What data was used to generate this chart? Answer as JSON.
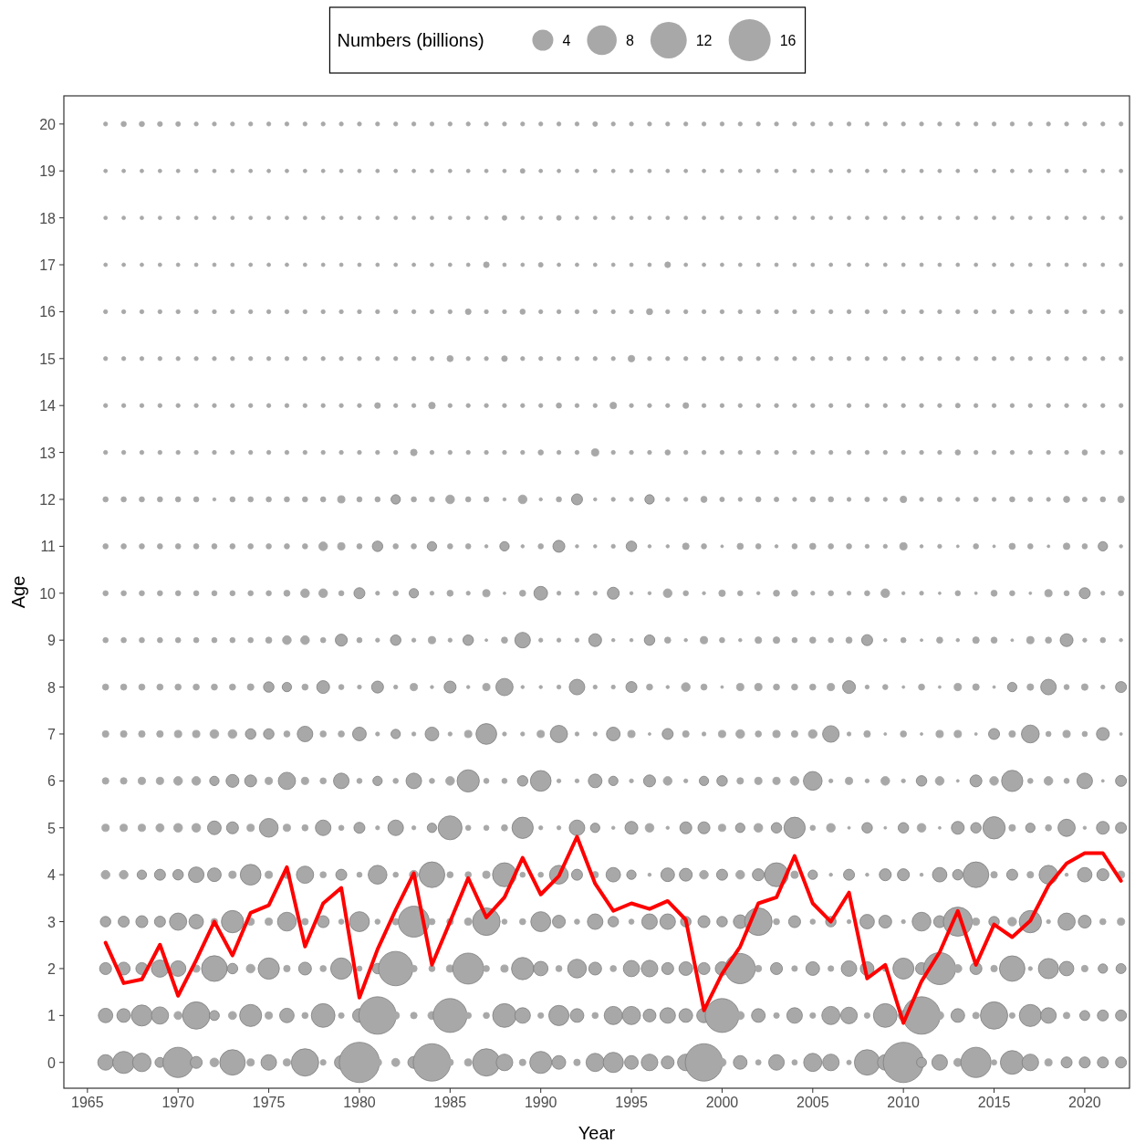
{
  "chart_data": {
    "type": "bubble",
    "xlabel": "Year",
    "ylabel": "Age",
    "legend_title": "Numbers (billions)",
    "size_legend": [
      4,
      8,
      12,
      16
    ],
    "x": [
      1966,
      1967,
      1968,
      1969,
      1970,
      1971,
      1972,
      1973,
      1974,
      1975,
      1976,
      1977,
      1978,
      1979,
      1980,
      1981,
      1982,
      1983,
      1984,
      1985,
      1986,
      1987,
      1988,
      1989,
      1990,
      1991,
      1992,
      1993,
      1994,
      1995,
      1996,
      1997,
      1998,
      1999,
      2000,
      2001,
      2002,
      2003,
      2004,
      2005,
      2006,
      2007,
      2008,
      2009,
      2010,
      2011,
      2012,
      2013,
      2014,
      2015,
      2016,
      2017,
      2018,
      2019,
      2020,
      2021,
      2022
    ],
    "xlim": [
      1963.7,
      2022.47
    ],
    "xticks": [
      1965,
      1970,
      1975,
      1980,
      1985,
      1990,
      1995,
      2000,
      2005,
      2010,
      2015,
      2020
    ],
    "ylim": [
      -0.55,
      20.6
    ],
    "yticks": [
      0,
      1,
      2,
      3,
      4,
      5,
      6,
      7,
      8,
      9,
      10,
      11,
      12,
      13,
      14,
      15,
      16,
      17,
      18,
      19,
      20
    ],
    "series": [
      {
        "color": "#a8a8a8",
        "values": [
          0,
          0,
          0,
          0,
          0,
          0,
          0,
          0,
          0,
          0,
          0,
          0,
          0,
          0,
          0,
          0,
          0,
          0,
          0,
          0,
          0,
          0,
          0,
          0,
          0,
          0,
          0,
          0,
          0,
          0,
          0,
          0,
          0,
          0,
          0,
          0,
          0,
          0,
          0,
          0,
          0,
          0,
          0,
          0,
          0,
          0,
          0,
          0,
          0,
          0,
          0,
          0,
          0,
          0,
          0,
          0,
          0
        ],
        "sizes": [
          2.2,
          4.4,
          3.1,
          0.9,
          8.3,
          1.3,
          0.7,
          5.9,
          0.5,
          2.2,
          0.5,
          6.8,
          0.3,
          1.7,
          14.7,
          0.6,
          0.6,
          1.3,
          12.7,
          0.4,
          0.5,
          6.8,
          2.5,
          0.4,
          4.4,
          1.7,
          0.4,
          3.0,
          3.7,
          1.7,
          2.5,
          1.5,
          2.5,
          12.7,
          0.6,
          1.7,
          0.27,
          2.2,
          0.27,
          3.0,
          2.5,
          0.2,
          5.9,
          2.2,
          14.7,
          0.9,
          2.2,
          0.6,
          8.3,
          0.27,
          5.1,
          2.5,
          0.5,
          1.1,
          1.1,
          1.1,
          1.1
        ]
      },
      {
        "color": "#a8a8a8",
        "values": [
          1,
          1,
          1,
          1,
          1,
          1,
          1,
          1,
          1,
          1,
          1,
          1,
          1,
          1,
          1,
          1,
          1,
          1,
          1,
          1,
          1,
          1,
          1,
          1,
          1,
          1,
          1,
          1,
          1,
          1,
          1,
          1,
          1,
          1,
          1,
          1,
          1,
          1,
          1,
          1,
          1,
          1,
          1,
          1,
          1,
          1,
          1,
          1,
          1,
          1,
          1,
          1,
          1,
          1,
          1,
          1,
          1
        ],
        "sizes": [
          1.9,
          1.7,
          4.0,
          2.7,
          0.6,
          6.8,
          0.9,
          0.6,
          4.4,
          0.5,
          1.9,
          0.35,
          5.1,
          0.3,
          1.7,
          12.7,
          0.5,
          0.4,
          0.6,
          10.4,
          0.35,
          0.35,
          5.1,
          2.2,
          0.3,
          3.7,
          1.7,
          0.35,
          3.0,
          3.0,
          1.5,
          2.2,
          1.7,
          1.9,
          10.4,
          0.6,
          1.7,
          0.3,
          2.2,
          0.3,
          3.0,
          2.5,
          0.3,
          5.1,
          0.9,
          12.7,
          0.6,
          1.7,
          0.4,
          6.8,
          0.3,
          4.4,
          2.2,
          0.4,
          0.9,
          1.1,
          1.1
        ]
      },
      {
        "color": "#a8a8a8",
        "values": [
          2,
          2,
          2,
          2,
          2,
          2,
          2,
          2,
          2,
          2,
          2,
          2,
          2,
          2,
          2,
          2,
          2,
          2,
          2,
          2,
          2,
          2,
          2,
          2,
          2,
          2,
          2,
          2,
          2,
          2,
          2,
          2,
          2,
          2,
          2,
          2,
          2,
          2,
          2,
          2,
          2,
          2,
          2,
          2,
          2,
          2,
          2,
          2,
          2,
          2,
          2,
          2,
          2,
          2,
          2,
          2,
          2
        ],
        "sizes": [
          1.3,
          1.5,
          1.3,
          2.7,
          2.2,
          0.5,
          6.0,
          1.0,
          0.7,
          4.1,
          0.4,
          1.5,
          0.35,
          4.1,
          0.25,
          1.0,
          10.7,
          0.4,
          0.35,
          0.5,
          8.7,
          0.35,
          0.5,
          4.5,
          1.9,
          0.35,
          3.2,
          1.5,
          0.35,
          2.4,
          2.5,
          1.3,
          1.7,
          1.3,
          1.7,
          8.3,
          0.4,
          1.3,
          0.3,
          1.7,
          0.3,
          2.2,
          1.7,
          0.3,
          4.0,
          1.3,
          9.3,
          0.6,
          1.3,
          0.4,
          5.9,
          0.15,
          3.7,
          1.9,
          0.4,
          0.8,
          0.9
        ]
      },
      {
        "color": "#a8a8a8",
        "values": [
          3,
          3,
          3,
          3,
          3,
          3,
          3,
          3,
          3,
          3,
          3,
          3,
          3,
          3,
          3,
          3,
          3,
          3,
          3,
          3,
          3,
          3,
          3,
          3,
          3,
          3,
          3,
          3,
          3,
          3,
          3,
          3,
          3,
          3,
          3,
          3,
          3,
          3,
          3,
          3,
          3,
          3,
          3,
          3,
          3,
          3,
          3,
          3,
          3,
          3,
          3,
          3,
          3,
          3,
          3,
          3,
          3
        ],
        "sizes": [
          1.0,
          1.1,
          1.3,
          1.1,
          2.7,
          1.9,
          0.4,
          4.5,
          0.5,
          0.5,
          3.2,
          0.4,
          1.3,
          0.25,
          3.6,
          0.25,
          0.4,
          8.7,
          0.35,
          0.4,
          0.5,
          6.9,
          0.25,
          0.35,
          3.6,
          1.5,
          0.25,
          2.2,
          1.0,
          0.25,
          2.2,
          2.2,
          1.0,
          1.3,
          1.0,
          1.7,
          6.9,
          0.35,
          1.3,
          0.25,
          1.0,
          0.15,
          1.9,
          1.5,
          0.15,
          3.2,
          1.3,
          7.7,
          0.5,
          1.0,
          0.7,
          4.5,
          0.15,
          2.7,
          1.5,
          0.35,
          0.5
        ]
      },
      {
        "color": "#a8a8a8",
        "values": [
          4,
          4,
          4,
          4,
          4,
          4,
          4,
          4,
          4,
          4,
          4,
          4,
          4,
          4,
          4,
          4,
          4,
          4,
          4,
          4,
          4,
          4,
          4,
          4,
          4,
          4,
          4,
          4,
          4,
          4,
          4,
          4,
          4,
          4,
          4,
          4,
          4,
          4,
          4,
          4,
          4,
          4,
          4,
          4,
          4,
          4,
          4,
          4,
          4,
          4,
          4,
          4,
          4,
          4,
          4,
          4,
          4
        ],
        "sizes": [
          0.7,
          0.7,
          0.8,
          1.1,
          1.0,
          2.2,
          1.7,
          0.5,
          3.9,
          0.5,
          0.5,
          2.7,
          0.35,
          1.1,
          0.25,
          3.2,
          0.25,
          0.7,
          6.0,
          0.35,
          0.35,
          0.5,
          5.2,
          0.25,
          0.25,
          3.2,
          1.1,
          0.4,
          1.9,
          0.8,
          0.1,
          1.7,
          1.5,
          0.7,
          1.1,
          0.7,
          1.3,
          5.2,
          0.5,
          0.8,
          0.1,
          1.1,
          0.1,
          1.3,
          1.3,
          0.1,
          1.9,
          1.0,
          6.0,
          0.4,
          1.1,
          0.4,
          3.2,
          0.1,
          1.9,
          1.3,
          0.5
        ]
      },
      {
        "color": "#a8a8a8",
        "values": [
          5,
          5,
          5,
          5,
          5,
          5,
          5,
          5,
          5,
          5,
          5,
          5,
          5,
          5,
          5,
          5,
          5,
          5,
          5,
          5,
          5,
          5,
          5,
          5,
          5,
          5,
          5,
          5,
          5,
          5,
          5,
          5,
          5,
          5,
          5,
          5,
          5,
          5,
          5,
          5,
          5,
          5,
          5,
          5,
          5,
          5,
          5,
          5,
          5,
          5,
          5,
          5,
          5,
          5,
          5,
          5,
          5
        ],
        "sizes": [
          0.5,
          0.5,
          0.5,
          0.6,
          0.7,
          0.7,
          1.7,
          1.3,
          0.5,
          3.2,
          0.5,
          0.35,
          2.2,
          0.25,
          1.1,
          0.15,
          2.2,
          0.15,
          0.8,
          5.2,
          0.25,
          0.25,
          0.35,
          4.1,
          0.15,
          0.15,
          2.2,
          0.8,
          0.1,
          1.5,
          0.7,
          0.1,
          1.3,
          1.3,
          0.5,
          0.8,
          0.7,
          1.0,
          4.1,
          0.25,
          0.7,
          0.07,
          1.0,
          0.07,
          1.0,
          0.7,
          0.07,
          1.5,
          1.0,
          4.5,
          0.4,
          0.8,
          0.35,
          2.7,
          0.1,
          1.5,
          1.1
        ]
      },
      {
        "color": "#a8a8a8",
        "values": [
          6,
          6,
          6,
          6,
          6,
          6,
          6,
          6,
          6,
          6,
          6,
          6,
          6,
          6,
          6,
          6,
          6,
          6,
          6,
          6,
          6,
          6,
          6,
          6,
          6,
          6,
          6,
          6,
          6,
          6,
          6,
          6,
          6,
          6,
          6,
          6,
          6,
          6,
          6,
          6,
          6,
          6,
          6,
          6,
          6,
          6,
          6,
          6,
          6,
          6,
          6,
          6,
          6,
          6,
          6,
          6,
          6
        ],
        "sizes": [
          0.4,
          0.4,
          0.5,
          0.5,
          0.7,
          0.7,
          0.8,
          1.5,
          1.3,
          0.5,
          2.7,
          0.5,
          0.35,
          2.2,
          0.25,
          0.8,
          0.25,
          2.2,
          0.25,
          0.7,
          4.5,
          0.25,
          0.25,
          1.0,
          3.9,
          0.15,
          0.15,
          1.7,
          0.8,
          0.15,
          1.3,
          0.7,
          0.15,
          0.8,
          1.0,
          0.4,
          0.5,
          0.5,
          0.7,
          3.2,
          0.15,
          0.5,
          0.15,
          0.7,
          0.15,
          1.0,
          0.7,
          0.07,
          1.3,
          0.7,
          4.1,
          0.25,
          0.7,
          0.25,
          2.2,
          0.07,
          1.1
        ]
      },
      {
        "color": "#a8a8a8",
        "values": [
          7,
          7,
          7,
          7,
          7,
          7,
          7,
          7,
          7,
          7,
          7,
          7,
          7,
          7,
          7,
          7,
          7,
          7,
          7,
          7,
          7,
          7,
          7,
          7,
          7,
          7,
          7,
          7,
          7,
          7,
          7,
          7,
          7,
          7,
          7,
          7,
          7,
          7,
          7,
          7,
          7,
          7,
          7,
          7,
          7,
          7,
          7,
          7,
          7,
          7,
          7,
          7,
          7,
          7,
          7,
          7,
          7
        ],
        "sizes": [
          0.4,
          0.4,
          0.4,
          0.4,
          0.5,
          0.5,
          0.7,
          0.7,
          1.0,
          1.0,
          0.35,
          2.2,
          0.35,
          0.35,
          1.7,
          0.15,
          0.8,
          0.15,
          1.7,
          0.15,
          0.5,
          3.9,
          0.15,
          0.15,
          0.5,
          2.7,
          0.15,
          0.15,
          1.7,
          0.5,
          0.07,
          1.1,
          0.4,
          0.15,
          0.5,
          0.7,
          0.35,
          0.5,
          0.4,
          0.7,
          2.5,
          0.15,
          0.4,
          0.07,
          0.35,
          0.07,
          0.5,
          0.5,
          0.07,
          1.1,
          0.4,
          2.9,
          0.25,
          0.5,
          0.25,
          1.5,
          0.07
        ]
      },
      {
        "color": "#a8a8a8",
        "values": [
          8,
          8,
          8,
          8,
          8,
          8,
          8,
          8,
          8,
          8,
          8,
          8,
          8,
          8,
          8,
          8,
          8,
          8,
          8,
          8,
          8,
          8,
          8,
          8,
          8,
          8,
          8,
          8,
          8,
          8,
          8,
          8,
          8,
          8,
          8,
          8,
          8,
          8,
          8,
          8,
          8,
          8,
          8,
          8,
          8,
          8,
          8,
          8,
          8,
          8,
          8,
          8,
          8,
          8,
          8,
          8,
          8
        ],
        "sizes": [
          0.35,
          0.35,
          0.35,
          0.35,
          0.35,
          0.35,
          0.35,
          0.35,
          0.4,
          1.0,
          0.8,
          0.35,
          1.5,
          0.25,
          0.15,
          1.3,
          0.15,
          0.5,
          0.1,
          1.3,
          0.1,
          0.5,
          2.7,
          0.1,
          0.1,
          0.15,
          2.2,
          0.15,
          0.15,
          1.1,
          0.35,
          0.1,
          0.7,
          0.35,
          0.07,
          0.5,
          0.5,
          0.35,
          0.35,
          0.35,
          0.5,
          1.5,
          0.15,
          0.25,
          0.07,
          0.35,
          0.07,
          0.5,
          0.4,
          0.07,
          0.8,
          0.4,
          2.2,
          0.25,
          0.4,
          0.15,
          1.1
        ]
      },
      {
        "color": "#a8a8a8",
        "values": [
          9,
          9,
          9,
          9,
          9,
          9,
          9,
          9,
          9,
          9,
          9,
          9,
          9,
          9,
          9,
          9,
          9,
          9,
          9,
          9,
          9,
          9,
          9,
          9,
          9,
          9,
          9,
          9,
          9,
          9,
          9,
          9,
          9,
          9,
          9,
          9,
          9,
          9,
          9,
          9,
          9,
          9,
          9,
          9,
          9,
          9,
          9,
          9,
          9,
          9,
          9,
          9,
          9,
          9,
          9,
          9,
          9
        ],
        "sizes": [
          0.25,
          0.25,
          0.25,
          0.25,
          0.25,
          0.25,
          0.25,
          0.25,
          0.25,
          0.35,
          0.7,
          0.7,
          0.25,
          1.3,
          0.25,
          0.15,
          1.0,
          0.15,
          0.5,
          0.15,
          1.0,
          0.07,
          0.35,
          2.2,
          0.15,
          0.15,
          0.15,
          1.5,
          0.1,
          0.1,
          1.0,
          0.35,
          0.1,
          0.5,
          0.25,
          0.1,
          0.4,
          0.4,
          0.25,
          0.35,
          0.25,
          0.35,
          1.1,
          0.1,
          0.25,
          0.07,
          0.35,
          0.1,
          0.4,
          0.35,
          0.07,
          0.5,
          0.35,
          1.5,
          0.15,
          0.25,
          0.1
        ]
      },
      {
        "color": "#a8a8a8",
        "values": [
          10,
          10,
          10,
          10,
          10,
          10,
          10,
          10,
          10,
          10,
          10,
          10,
          10,
          10,
          10,
          10,
          10,
          10,
          10,
          10,
          10,
          10,
          10,
          10,
          10,
          10,
          10,
          10,
          10,
          10,
          10,
          10,
          10,
          10,
          10,
          10,
          10,
          10,
          10,
          10,
          10,
          10,
          10,
          10,
          10,
          10,
          10,
          10,
          10,
          10,
          10,
          10,
          10,
          10,
          10,
          10,
          10
        ],
        "sizes": [
          0.25,
          0.25,
          0.25,
          0.25,
          0.25,
          0.25,
          0.25,
          0.25,
          0.25,
          0.25,
          0.35,
          0.7,
          0.7,
          0.25,
          1.1,
          0.15,
          0.25,
          0.8,
          0.15,
          0.35,
          0.15,
          0.5,
          0.07,
          0.35,
          1.7,
          0.15,
          0.15,
          0.15,
          1.3,
          0.1,
          0.1,
          0.7,
          0.25,
          0.1,
          0.4,
          0.25,
          0.1,
          0.35,
          0.35,
          0.15,
          0.25,
          0.15,
          0.25,
          0.7,
          0.1,
          0.15,
          0.07,
          0.25,
          0.07,
          0.35,
          0.25,
          0.07,
          0.5,
          0.25,
          1.1,
          0.15,
          0.25
        ]
      },
      {
        "color": "#a8a8a8",
        "values": [
          11,
          11,
          11,
          11,
          11,
          11,
          11,
          11,
          11,
          11,
          11,
          11,
          11,
          11,
          11,
          11,
          11,
          11,
          11,
          11,
          11,
          11,
          11,
          11,
          11,
          11,
          11,
          11,
          11,
          11,
          11,
          11,
          11,
          11,
          11,
          11,
          11,
          11,
          11,
          11,
          11,
          11,
          11,
          11,
          11,
          11,
          11,
          11,
          11,
          11,
          11,
          11,
          11,
          11,
          11,
          11,
          11
        ],
        "sizes": [
          0.25,
          0.25,
          0.25,
          0.25,
          0.25,
          0.25,
          0.25,
          0.25,
          0.25,
          0.25,
          0.25,
          0.25,
          0.7,
          0.5,
          0.25,
          1.0,
          0.25,
          0.25,
          0.8,
          0.25,
          0.25,
          0.1,
          0.8,
          0.1,
          0.25,
          1.3,
          0.1,
          0.1,
          0.15,
          1.0,
          0.1,
          0.1,
          0.4,
          0.25,
          0.07,
          0.35,
          0.25,
          0.1,
          0.25,
          0.35,
          0.25,
          0.25,
          0.15,
          0.15,
          0.5,
          0.1,
          0.15,
          0.07,
          0.25,
          0.07,
          0.35,
          0.25,
          0.07,
          0.4,
          0.25,
          0.8,
          0.1
        ]
      },
      {
        "color": "#a8a8a8",
        "values": [
          12,
          12,
          12,
          12,
          12,
          12,
          12,
          12,
          12,
          12,
          12,
          12,
          12,
          12,
          12,
          12,
          12,
          12,
          12,
          12,
          12,
          12,
          12,
          12,
          12,
          12,
          12,
          12,
          12,
          12,
          12,
          12,
          12,
          12,
          12,
          12,
          12,
          12,
          12,
          12,
          12,
          12,
          12,
          12,
          12,
          12,
          12,
          12,
          12,
          12,
          12,
          12,
          12,
          12,
          12,
          12,
          12
        ],
        "sizes": [
          0.25,
          0.25,
          0.25,
          0.25,
          0.25,
          0.25,
          0.1,
          0.25,
          0.25,
          0.25,
          0.25,
          0.25,
          0.25,
          0.5,
          0.25,
          0.25,
          0.8,
          0.25,
          0.25,
          0.7,
          0.25,
          0.25,
          0.1,
          0.7,
          0.1,
          0.25,
          1.1,
          0.1,
          0.15,
          0.15,
          0.8,
          0.15,
          0.15,
          0.35,
          0.2,
          0.15,
          0.25,
          0.2,
          0.15,
          0.25,
          0.25,
          0.15,
          0.2,
          0.15,
          0.4,
          0.15,
          0.2,
          0.15,
          0.2,
          0.15,
          0.25,
          0.2,
          0.15,
          0.35,
          0.2,
          0.25,
          0.4
        ]
      },
      {
        "color": "#a8a8a8",
        "values": [
          13,
          13,
          13,
          13,
          13,
          13,
          13,
          13,
          13,
          13,
          13,
          13,
          13,
          13,
          13,
          13,
          13,
          13,
          13,
          13,
          13,
          13,
          13,
          13,
          13,
          13,
          13,
          13,
          13,
          13,
          13,
          13,
          13,
          13,
          13,
          13,
          13,
          13,
          13,
          13,
          13,
          13,
          13,
          13,
          13,
          13,
          13,
          13,
          13,
          13,
          13,
          13,
          13,
          13,
          13,
          13,
          13
        ],
        "sizes": [
          0.15,
          0.15,
          0.15,
          0.15,
          0.15,
          0.15,
          0.15,
          0.15,
          0.15,
          0.15,
          0.15,
          0.15,
          0.15,
          0.15,
          0.15,
          0.15,
          0.15,
          0.4,
          0.15,
          0.15,
          0.15,
          0.15,
          0.15,
          0.15,
          0.25,
          0.15,
          0.15,
          0.5,
          0.15,
          0.15,
          0.15,
          0.25,
          0.15,
          0.15,
          0.15,
          0.15,
          0.15,
          0.15,
          0.15,
          0.15,
          0.15,
          0.15,
          0.15,
          0.15,
          0.15,
          0.15,
          0.15,
          0.25,
          0.15,
          0.15,
          0.15,
          0.15,
          0.15,
          0.15,
          0.25,
          0.15,
          0.15
        ]
      },
      {
        "color": "#a8a8a8",
        "values": [
          14,
          14,
          14,
          14,
          14,
          14,
          14,
          14,
          14,
          14,
          14,
          14,
          14,
          14,
          14,
          14,
          14,
          14,
          14,
          14,
          14,
          14,
          14,
          14,
          14,
          14,
          14,
          14,
          14,
          14,
          14,
          14,
          14,
          14,
          14,
          14,
          14,
          14,
          14,
          14,
          14,
          14,
          14,
          14,
          14,
          14,
          14,
          14,
          14,
          14,
          14,
          14,
          14,
          14,
          14,
          14,
          14
        ],
        "sizes": [
          0.15,
          0.15,
          0.15,
          0.15,
          0.15,
          0.15,
          0.15,
          0.15,
          0.15,
          0.15,
          0.15,
          0.15,
          0.15,
          0.15,
          0.15,
          0.3,
          0.15,
          0.15,
          0.4,
          0.15,
          0.15,
          0.15,
          0.15,
          0.15,
          0.15,
          0.25,
          0.15,
          0.15,
          0.4,
          0.15,
          0.15,
          0.15,
          0.3,
          0.15,
          0.15,
          0.15,
          0.15,
          0.15,
          0.15,
          0.15,
          0.15,
          0.15,
          0.15,
          0.15,
          0.15,
          0.15,
          0.15,
          0.2,
          0.15,
          0.15,
          0.15,
          0.15,
          0.15,
          0.15,
          0.15,
          0.15,
          0.15
        ]
      },
      {
        "color": "#a8a8a8",
        "values": [
          15,
          15,
          15,
          15,
          15,
          15,
          15,
          15,
          15,
          15,
          15,
          15,
          15,
          15,
          15,
          15,
          15,
          15,
          15,
          15,
          15,
          15,
          15,
          15,
          15,
          15,
          15,
          15,
          15,
          15,
          15,
          15,
          15,
          15,
          15,
          15,
          15,
          15,
          15,
          15,
          15,
          15,
          15,
          15,
          15,
          15,
          15,
          15,
          15,
          15,
          15,
          15,
          15,
          15,
          15,
          15,
          15
        ],
        "sizes": [
          0.15,
          0.15,
          0.15,
          0.15,
          0.15,
          0.15,
          0.15,
          0.15,
          0.15,
          0.15,
          0.15,
          0.15,
          0.15,
          0.15,
          0.15,
          0.15,
          0.15,
          0.15,
          0.15,
          0.35,
          0.15,
          0.15,
          0.3,
          0.15,
          0.15,
          0.15,
          0.15,
          0.15,
          0.15,
          0.4,
          0.15,
          0.15,
          0.15,
          0.15,
          0.15,
          0.2,
          0.15,
          0.15,
          0.15,
          0.15,
          0.15,
          0.15,
          0.15,
          0.15,
          0.15,
          0.15,
          0.15,
          0.15,
          0.15,
          0.15,
          0.15,
          0.15,
          0.15,
          0.15,
          0.15,
          0.15,
          0.15
        ]
      },
      {
        "color": "#a8a8a8",
        "values": [
          16,
          16,
          16,
          16,
          16,
          16,
          16,
          16,
          16,
          16,
          16,
          16,
          16,
          16,
          16,
          16,
          16,
          16,
          16,
          16,
          16,
          16,
          16,
          16,
          16,
          16,
          16,
          16,
          16,
          16,
          16,
          16,
          16,
          16,
          16,
          16,
          16,
          16,
          16,
          16,
          16,
          16,
          16,
          16,
          16,
          16,
          16,
          16,
          16,
          16,
          16,
          16,
          16,
          16,
          16,
          16,
          16
        ],
        "sizes": [
          0.15,
          0.15,
          0.15,
          0.15,
          0.15,
          0.15,
          0.15,
          0.15,
          0.15,
          0.15,
          0.15,
          0.15,
          0.15,
          0.15,
          0.15,
          0.15,
          0.15,
          0.15,
          0.15,
          0.15,
          0.3,
          0.15,
          0.15,
          0.25,
          0.15,
          0.15,
          0.15,
          0.15,
          0.15,
          0.15,
          0.35,
          0.15,
          0.15,
          0.15,
          0.15,
          0.15,
          0.15,
          0.15,
          0.15,
          0.15,
          0.15,
          0.15,
          0.15,
          0.15,
          0.15,
          0.15,
          0.15,
          0.15,
          0.15,
          0.15,
          0.15,
          0.15,
          0.15,
          0.15,
          0.15,
          0.15,
          0.15
        ]
      },
      {
        "color": "#a8a8a8",
        "values": [
          17,
          17,
          17,
          17,
          17,
          17,
          17,
          17,
          17,
          17,
          17,
          17,
          17,
          17,
          17,
          17,
          17,
          17,
          17,
          17,
          17,
          17,
          17,
          17,
          17,
          17,
          17,
          17,
          17,
          17,
          17,
          17,
          17,
          17,
          17,
          17,
          17,
          17,
          17,
          17,
          17,
          17,
          17,
          17,
          17,
          17,
          17,
          17,
          17,
          17,
          17,
          17,
          17,
          17,
          17,
          17,
          17
        ],
        "sizes": [
          0.12,
          0.12,
          0.12,
          0.12,
          0.12,
          0.12,
          0.12,
          0.12,
          0.12,
          0.12,
          0.12,
          0.12,
          0.12,
          0.12,
          0.12,
          0.12,
          0.12,
          0.12,
          0.12,
          0.12,
          0.12,
          0.3,
          0.12,
          0.12,
          0.2,
          0.12,
          0.12,
          0.12,
          0.12,
          0.12,
          0.12,
          0.3,
          0.12,
          0.12,
          0.12,
          0.12,
          0.12,
          0.12,
          0.12,
          0.12,
          0.12,
          0.12,
          0.12,
          0.12,
          0.12,
          0.12,
          0.12,
          0.12,
          0.12,
          0.12,
          0.12,
          0.12,
          0.12,
          0.12,
          0.12,
          0.12,
          0.12
        ]
      },
      {
        "color": "#a8a8a8",
        "values": [
          18,
          18,
          18,
          18,
          18,
          18,
          18,
          18,
          18,
          18,
          18,
          18,
          18,
          18,
          18,
          18,
          18,
          18,
          18,
          18,
          18,
          18,
          18,
          18,
          18,
          18,
          18,
          18,
          18,
          18,
          18,
          18,
          18,
          18,
          18,
          18,
          18,
          18,
          18,
          18,
          18,
          18,
          18,
          18,
          18,
          18,
          18,
          18,
          18,
          18,
          18,
          18,
          18,
          18,
          18,
          18,
          18
        ],
        "sizes": [
          0.12,
          0.12,
          0.12,
          0.12,
          0.12,
          0.12,
          0.12,
          0.12,
          0.12,
          0.12,
          0.12,
          0.12,
          0.12,
          0.12,
          0.12,
          0.12,
          0.12,
          0.12,
          0.12,
          0.12,
          0.12,
          0.12,
          0.2,
          0.12,
          0.12,
          0.2,
          0.12,
          0.12,
          0.12,
          0.12,
          0.12,
          0.12,
          0.12,
          0.12,
          0.12,
          0.12,
          0.12,
          0.12,
          0.12,
          0.12,
          0.12,
          0.12,
          0.12,
          0.12,
          0.12,
          0.12,
          0.12,
          0.12,
          0.12,
          0.12,
          0.12,
          0.12,
          0.12,
          0.12,
          0.12,
          0.12,
          0.12
        ]
      },
      {
        "color": "#a8a8a8",
        "values": [
          19,
          19,
          19,
          19,
          19,
          19,
          19,
          19,
          19,
          19,
          19,
          19,
          19,
          19,
          19,
          19,
          19,
          19,
          19,
          19,
          19,
          19,
          19,
          19,
          19,
          19,
          19,
          19,
          19,
          19,
          19,
          19,
          19,
          19,
          19,
          19,
          19,
          19,
          19,
          19,
          19,
          19,
          19,
          19,
          19,
          19,
          19,
          19,
          19,
          19,
          19,
          19,
          19,
          19,
          19,
          19,
          19
        ],
        "sizes": [
          0.12,
          0.12,
          0.12,
          0.12,
          0.12,
          0.12,
          0.12,
          0.12,
          0.12,
          0.12,
          0.12,
          0.12,
          0.12,
          0.12,
          0.12,
          0.12,
          0.12,
          0.12,
          0.12,
          0.12,
          0.12,
          0.12,
          0.12,
          0.2,
          0.12,
          0.12,
          0.12,
          0.12,
          0.12,
          0.12,
          0.12,
          0.12,
          0.12,
          0.12,
          0.12,
          0.12,
          0.12,
          0.12,
          0.12,
          0.12,
          0.12,
          0.12,
          0.12,
          0.12,
          0.12,
          0.12,
          0.12,
          0.12,
          0.12,
          0.12,
          0.12,
          0.12,
          0.12,
          0.12,
          0.12,
          0.12,
          0.12
        ]
      },
      {
        "color": "#a8a8a8",
        "values": [
          20,
          20,
          20,
          20,
          20,
          20,
          20,
          20,
          20,
          20,
          20,
          20,
          20,
          20,
          20,
          20,
          20,
          20,
          20,
          20,
          20,
          20,
          20,
          20,
          20,
          20,
          20,
          20,
          20,
          20,
          20,
          20,
          20,
          20,
          20,
          20,
          20,
          20,
          20,
          20,
          20,
          20,
          20,
          20,
          20,
          20,
          20,
          20,
          20,
          20,
          20,
          20,
          20,
          20,
          20,
          20,
          20
        ],
        "sizes": [
          0.15,
          0.25,
          0.25,
          0.22,
          0.2,
          0.15,
          0.15,
          0.15,
          0.15,
          0.15,
          0.15,
          0.15,
          0.15,
          0.15,
          0.15,
          0.15,
          0.15,
          0.15,
          0.15,
          0.15,
          0.15,
          0.15,
          0.15,
          0.15,
          0.15,
          0.15,
          0.15,
          0.2,
          0.15,
          0.15,
          0.15,
          0.15,
          0.15,
          0.15,
          0.15,
          0.15,
          0.15,
          0.15,
          0.15,
          0.15,
          0.15,
          0.15,
          0.15,
          0.15,
          0.15,
          0.15,
          0.15,
          0.15,
          0.15,
          0.15,
          0.15,
          0.15,
          0.15,
          0.15,
          0.15,
          0.15,
          0.15
        ]
      },
      {
        "type": "line",
        "color": "#ff0000",
        "values": [
          2.55,
          1.69,
          1.77,
          2.51,
          1.42,
          2.18,
          3.0,
          2.28,
          3.19,
          3.35,
          4.16,
          2.47,
          3.39,
          3.72,
          1.38,
          2.41,
          3.25,
          4.03,
          2.08,
          3.0,
          3.93,
          3.09,
          3.52,
          4.36,
          3.58,
          3.97,
          4.81,
          3.81,
          3.23,
          3.39,
          3.27,
          3.44,
          3.04,
          1.11,
          1.89,
          2.47,
          3.39,
          3.52,
          4.4,
          3.39,
          3.0,
          3.62,
          1.79,
          2.08,
          0.84,
          1.73,
          2.35,
          3.23,
          2.08,
          2.94,
          2.67,
          3.02,
          3.77,
          4.24,
          4.46,
          4.46,
          3.87
        ]
      }
    ]
  }
}
